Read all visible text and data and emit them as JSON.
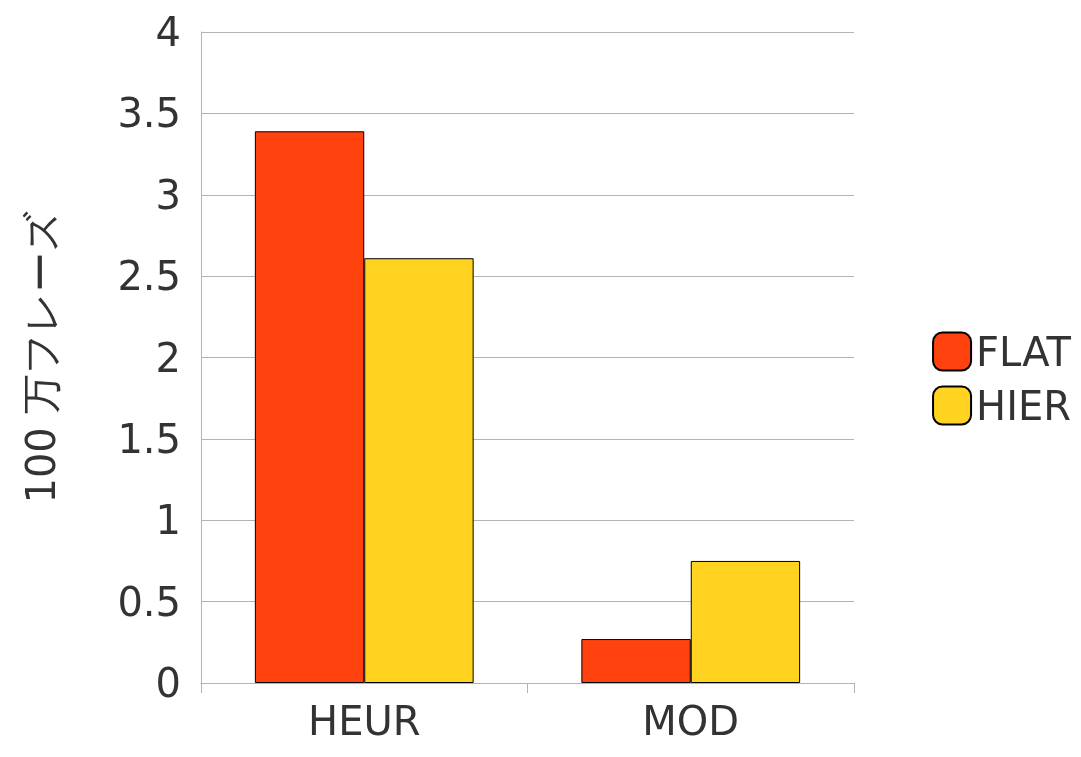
{
  "chart_data": {
    "type": "bar",
    "ylabel": "100 万フレーズ",
    "categories": [
      "HEUR",
      "MOD"
    ],
    "series": [
      {
        "name": "FLAT",
        "color": "#ff420e",
        "values": [
          3.39,
          0.27
        ]
      },
      {
        "name": "HIER",
        "color": "#ffd320",
        "values": [
          2.61,
          0.75
        ]
      }
    ],
    "ylim": [
      0,
      4
    ],
    "yticks": [
      0,
      0.5,
      1,
      1.5,
      2,
      2.5,
      3,
      3.5,
      4
    ],
    "grid": "y",
    "legend": "right"
  }
}
